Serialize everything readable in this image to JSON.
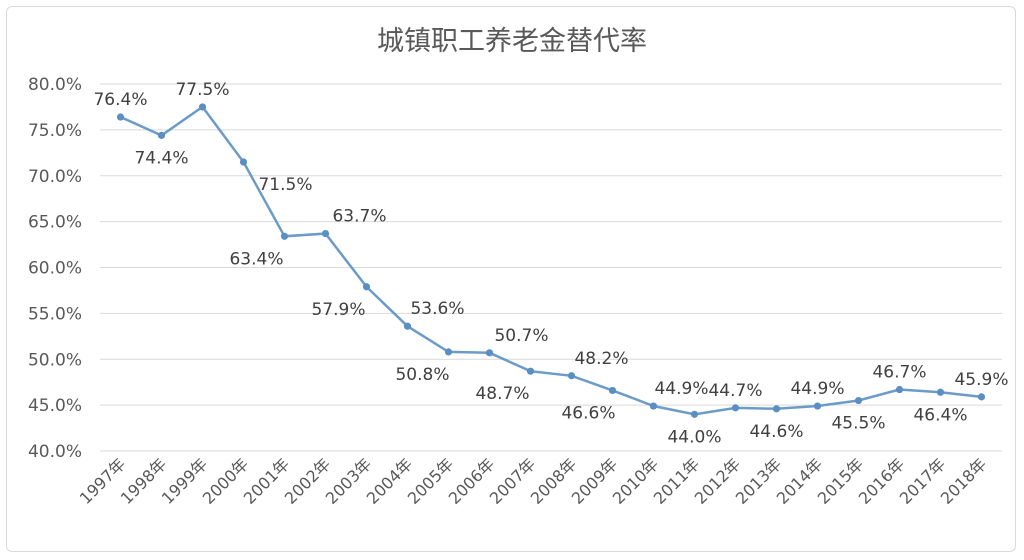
{
  "chart_data": {
    "type": "line",
    "title": "城镇职工养老金替代率",
    "xlabel": "",
    "ylabel": "",
    "ylim": [
      40,
      80
    ],
    "yticks": [
      "80.0%",
      "75.0%",
      "70.0%",
      "65.0%",
      "60.0%",
      "55.0%",
      "50.0%",
      "45.0%",
      "40.0%"
    ],
    "ytick_values": [
      80,
      75,
      70,
      65,
      60,
      55,
      50,
      45,
      40
    ],
    "grid": true,
    "legend": "none",
    "series_color": "#6b9bc8",
    "categories": [
      "1997年",
      "1998年",
      "1999年",
      "2000年",
      "2001年",
      "2002年",
      "2003年",
      "2004年",
      "2005年",
      "2006年",
      "2007年",
      "2008年",
      "2009年",
      "2010年",
      "2011年",
      "2012年",
      "2013年",
      "2014年",
      "2015年",
      "2016年",
      "2017年",
      "2018年"
    ],
    "series": [
      {
        "values": [
          76.4,
          74.4,
          77.5,
          71.5,
          63.4,
          63.7,
          57.9,
          53.6,
          50.8,
          50.7,
          48.7,
          48.2,
          46.6,
          44.9,
          44.0,
          44.7,
          44.6,
          44.9,
          45.5,
          46.7,
          46.4,
          45.9
        ],
        "labels": [
          "76.4%",
          "74.4%",
          "77.5%",
          "71.5%",
          "63.4%",
          "63.7%",
          "57.9%",
          "53.6%",
          "50.8%",
          "50.7%",
          "48.7%",
          "48.2%",
          "46.6%",
          "44.9%",
          "44.0%",
          "44.7%",
          "44.6%",
          "44.9%",
          "45.5%",
          "46.7%",
          "46.4%",
          "45.9%"
        ]
      }
    ]
  }
}
